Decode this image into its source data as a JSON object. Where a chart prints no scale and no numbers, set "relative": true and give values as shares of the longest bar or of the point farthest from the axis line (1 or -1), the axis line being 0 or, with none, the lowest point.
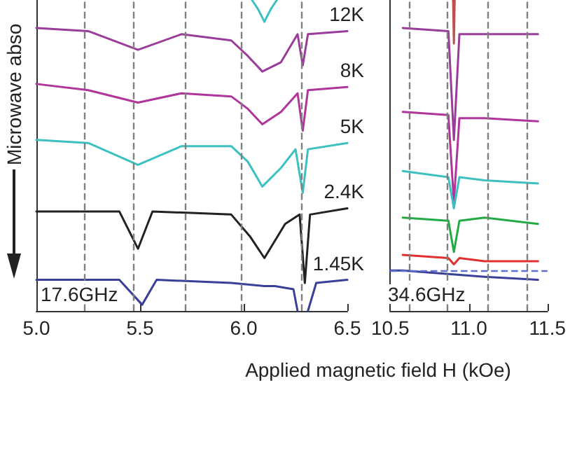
{
  "chart_data": [
    {
      "type": "line",
      "relative": true,
      "xlabel": "Applied magnetic field H (kOe)",
      "ylabel": "Microwave abso",
      "xlim": [
        5,
        6.5
      ],
      "xticks": [
        {
          "value": 5,
          "label": "5.0"
        },
        5.5,
        {
          "value": 6,
          "label": "6.0"
        },
        6.5
      ],
      "tick_labels": "x",
      "marker": "none",
      "line_style": "solid",
      "annotations": [
        "17.6GHz"
      ],
      "ref_lines": [
        {
          "axis": "x",
          "value": 5.23,
          "color": "#7f7f7f",
          "line_style": "dashed"
        },
        {
          "axis": "x",
          "value": 5.47,
          "color": "#7f7f7f",
          "line_style": "dashed"
        },
        {
          "axis": "x",
          "value": 5.72,
          "color": "#7f7f7f",
          "line_style": "dashed"
        },
        {
          "axis": "x",
          "value": 5.99,
          "color": "#7f7f7f",
          "line_style": "dashed"
        },
        {
          "axis": "x",
          "value": 6.28,
          "color": "#7f7f7f",
          "line_style": "dashed"
        }
      ],
      "series": [
        {
          "color": "#3cc0c0",
          "x": [
            6.04,
            6.07,
            6.1,
            6.13,
            6.16
          ],
          "values": [
            1.0,
            0.97,
            0.93,
            0.97,
            1.0
          ]
        },
        {
          "name": "12K",
          "color": "#9a3d9a",
          "x": [
            5.0,
            5.25,
            5.49,
            5.7,
            5.94,
            6.02,
            6.09,
            6.18,
            6.26,
            6.285,
            6.31,
            6.5
          ],
          "values": [
            0.91,
            0.9,
            0.84,
            0.89,
            0.87,
            0.82,
            0.77,
            0.8,
            0.89,
            0.79,
            0.89,
            0.9
          ]
        },
        {
          "name": "8K",
          "color": "#b0359a",
          "x": [
            5.0,
            5.25,
            5.49,
            5.7,
            5.94,
            6.02,
            6.09,
            6.18,
            6.26,
            6.285,
            6.31,
            6.5
          ],
          "values": [
            0.73,
            0.71,
            0.67,
            0.7,
            0.69,
            0.65,
            0.6,
            0.64,
            0.7,
            0.58,
            0.71,
            0.72
          ]
        },
        {
          "name": "5K",
          "color": "#3cc0c0",
          "x": [
            5.0,
            5.25,
            5.49,
            5.7,
            5.94,
            6.02,
            6.09,
            6.18,
            6.25,
            6.285,
            6.31,
            6.5
          ],
          "values": [
            0.55,
            0.54,
            0.47,
            0.53,
            0.53,
            0.48,
            0.4,
            0.46,
            0.52,
            0.38,
            0.52,
            0.54
          ]
        },
        {
          "name": "2.4K",
          "color": "#222222",
          "x": [
            5.0,
            5.4,
            5.49,
            5.56,
            5.94,
            6.03,
            6.1,
            6.2,
            6.27,
            6.295,
            6.32,
            6.5
          ],
          "values": [
            0.32,
            0.32,
            0.2,
            0.32,
            0.31,
            0.24,
            0.17,
            0.28,
            0.31,
            0.09,
            0.31,
            0.33
          ]
        },
        {
          "name": "1.45K",
          "color": "#3a3f9a",
          "x": [
            5.0,
            5.4,
            5.51,
            5.58,
            5.94,
            6.1,
            6.15,
            6.24,
            6.26,
            6.27,
            6.31,
            6.35,
            6.5
          ],
          "values": [
            0.1,
            0.1,
            0.02,
            0.1,
            0.09,
            0.08,
            0.08,
            0.07,
            0.0,
            null,
            0.0,
            0.09,
            0.1
          ]
        }
      ]
    },
    {
      "type": "line",
      "relative": true,
      "xlim": [
        10.5,
        11.5
      ],
      "xticks": [
        10.5,
        {
          "value": 11,
          "label": "11.0"
        },
        11.5
      ],
      "tick_labels": "x",
      "marker": "none",
      "line_style": "solid",
      "annotations": [
        "34.6GHz"
      ],
      "ref_lines": [
        {
          "axis": "x",
          "value": 10.62,
          "color": "#7f7f7f",
          "line_style": "dashed"
        },
        {
          "axis": "x",
          "value": 10.86,
          "color": "#7f7f7f",
          "line_style": "dashed"
        },
        {
          "axis": "x",
          "value": 11.12,
          "color": "#7f7f7f",
          "line_style": "dashed"
        },
        {
          "axis": "x",
          "value": 11.37,
          "color": "#7f7f7f",
          "line_style": "dashed"
        },
        {
          "axis": "y",
          "value": 0.13,
          "color": "#6070d0",
          "line_style": "dashed"
        }
      ],
      "series": [
        {
          "color": "#c0504d",
          "x": [
            10.9,
            10.905,
            10.91
          ],
          "values": [
            1.0,
            0.86,
            1.0
          ]
        },
        {
          "color": "#9a3d9a",
          "x": [
            10.58,
            10.87,
            10.905,
            10.94,
            11.1,
            11.44
          ],
          "values": [
            0.91,
            0.9,
            0.55,
            0.89,
            0.89,
            0.89
          ]
        },
        {
          "color": "#b0359a",
          "x": [
            10.58,
            10.87,
            10.905,
            10.94,
            11.1,
            11.44
          ],
          "values": [
            0.64,
            0.63,
            0.35,
            0.62,
            0.62,
            0.61
          ]
        },
        {
          "color": "#3cc0c0",
          "x": [
            10.58,
            10.87,
            10.905,
            10.94,
            11.1,
            11.44
          ],
          "values": [
            0.45,
            0.43,
            0.33,
            0.43,
            0.42,
            0.41
          ]
        },
        {
          "color": "#22aa44",
          "x": [
            10.58,
            10.87,
            10.905,
            10.94,
            11.1,
            11.44
          ],
          "values": [
            0.3,
            0.29,
            0.19,
            0.29,
            0.3,
            0.28
          ]
        },
        {
          "color": "#e03030",
          "x": [
            10.58,
            10.87,
            10.905,
            10.94,
            11.1,
            11.44
          ],
          "values": [
            0.18,
            0.17,
            0.15,
            0.17,
            0.16,
            0.16
          ]
        },
        {
          "color": "#3a3f9a",
          "x": [
            10.5,
            10.58,
            11.1,
            11.44
          ],
          "values": [
            0.13,
            0.13,
            0.11,
            0.1
          ]
        }
      ]
    }
  ]
}
